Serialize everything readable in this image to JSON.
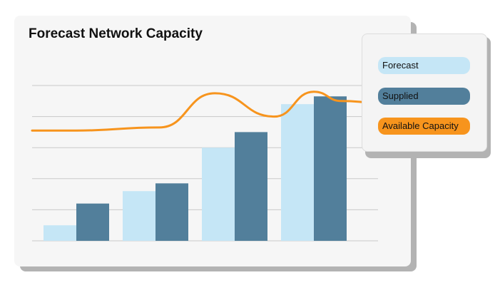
{
  "chart_data": {
    "type": "bar",
    "title": "Forecast Network Capacity",
    "categories": [
      "",
      "",
      "",
      ""
    ],
    "series": [
      {
        "name": "Forecast",
        "type": "bar",
        "color": "#c5e6f6",
        "values": [
          1,
          3.2,
          6,
          8.8
        ]
      },
      {
        "name": "Supplied",
        "type": "bar",
        "color": "#527f9b",
        "values": [
          2.4,
          3.7,
          7,
          9.3
        ]
      },
      {
        "name": "Available Capacity",
        "type": "line",
        "color": "#f7941d",
        "x": [
          0,
          1.05,
          1.75,
          2.5,
          3.0,
          3.35,
          3.8
        ],
        "values": [
          7.1,
          7.3,
          9.5,
          8.0,
          9.6,
          9.0,
          8.9
        ]
      }
    ],
    "ylim": [
      0,
      10
    ],
    "grid": true,
    "legend": "right",
    "xlabel": "",
    "ylabel": ""
  }
}
